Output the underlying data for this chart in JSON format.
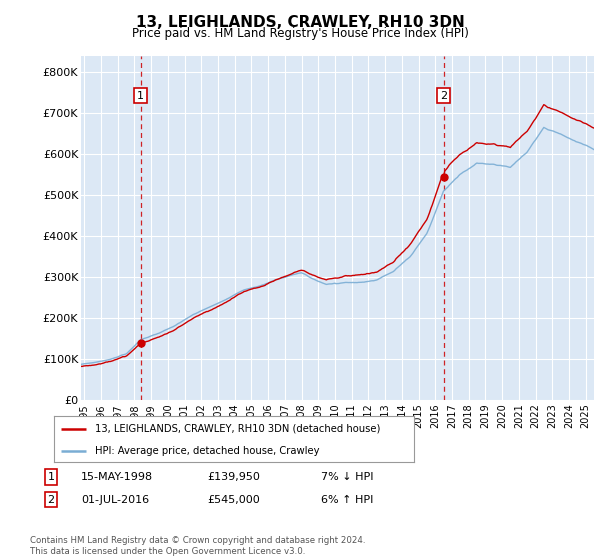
{
  "title": "13, LEIGHLANDS, CRAWLEY, RH10 3DN",
  "subtitle": "Price paid vs. HM Land Registry's House Price Index (HPI)",
  "ylabel_ticks": [
    "£0",
    "£100K",
    "£200K",
    "£300K",
    "£400K",
    "£500K",
    "£600K",
    "£700K",
    "£800K"
  ],
  "ytick_values": [
    0,
    100000,
    200000,
    300000,
    400000,
    500000,
    600000,
    700000,
    800000
  ],
  "ylim": [
    0,
    840000
  ],
  "xlim_start": 1994.8,
  "xlim_end": 2025.5,
  "background_color": "#dce8f5",
  "grid_color": "#ffffff",
  "sale1_date": 1998.37,
  "sale1_price": 139950,
  "sale2_date": 2016.5,
  "sale2_price": 545000,
  "hpi_color": "#7aadd4",
  "price_color": "#cc0000",
  "vline_color": "#cc0000",
  "legend_line1": "13, LEIGHLANDS, CRAWLEY, RH10 3DN (detached house)",
  "legend_line2": "HPI: Average price, detached house, Crawley",
  "table_row1_num": "1",
  "table_row1_date": "15-MAY-1998",
  "table_row1_price": "£139,950",
  "table_row1_hpi": "7% ↓ HPI",
  "table_row2_num": "2",
  "table_row2_date": "01-JUL-2016",
  "table_row2_price": "£545,000",
  "table_row2_hpi": "6% ↑ HPI",
  "footnote": "Contains HM Land Registry data © Crown copyright and database right 2024.\nThis data is licensed under the Open Government Licence v3.0.",
  "xtick_years": [
    1995,
    1996,
    1997,
    1998,
    1999,
    2000,
    2001,
    2002,
    2003,
    2004,
    2005,
    2006,
    2007,
    2008,
    2009,
    2010,
    2011,
    2012,
    2013,
    2014,
    2015,
    2016,
    2017,
    2018,
    2019,
    2020,
    2021,
    2022,
    2023,
    2024,
    2025
  ]
}
